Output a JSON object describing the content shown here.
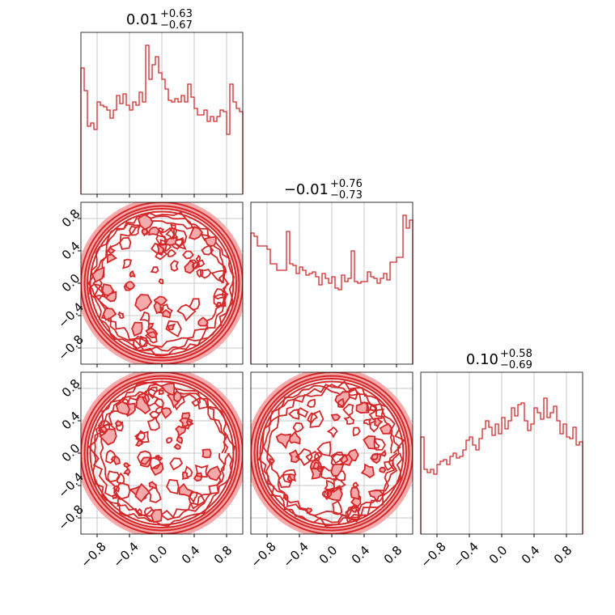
{
  "chart_data": {
    "type": "corner",
    "parameters": 3,
    "range": [
      -1,
      1
    ],
    "tick_values": [
      -0.8,
      -0.4,
      0.0,
      0.4,
      0.8
    ],
    "tick_labels": [
      "−0.8",
      "−0.4",
      "0.0",
      "0.4",
      "0.8"
    ],
    "grid": true,
    "color": "#d62728",
    "fill_color": "#f4a9ab",
    "titles": [
      {
        "median": "0.01",
        "upper": "+0.63",
        "lower": "−0.67"
      },
      {
        "median": "−0.01",
        "upper": "+0.76",
        "lower": "−0.73"
      },
      {
        "median": "0.10",
        "upper": "+0.58",
        "lower": "−0.69"
      }
    ],
    "histograms": [
      {
        "bins": 50,
        "values": [
          0.78,
          0.64,
          0.42,
          0.44,
          0.4,
          0.57,
          0.55,
          0.54,
          0.52,
          0.47,
          0.52,
          0.61,
          0.56,
          0.62,
          0.55,
          0.52,
          0.57,
          0.55,
          0.63,
          0.57,
          0.92,
          0.71,
          0.8,
          0.85,
          0.75,
          0.71,
          0.65,
          0.58,
          0.57,
          0.59,
          0.57,
          0.61,
          0.57,
          0.68,
          0.6,
          0.53,
          0.49,
          0.49,
          0.52,
          0.45,
          0.48,
          0.45,
          0.48,
          0.52,
          0.51,
          0.37,
          0.68,
          0.57,
          0.53,
          0.51
        ]
      },
      {
        "bins": 50,
        "values": [
          0.81,
          0.79,
          0.73,
          0.73,
          0.73,
          0.71,
          0.62,
          0.62,
          0.58,
          0.58,
          0.58,
          0.82,
          0.62,
          0.61,
          0.56,
          0.6,
          0.58,
          0.55,
          0.56,
          0.57,
          0.54,
          0.49,
          0.56,
          0.53,
          0.5,
          0.54,
          0.47,
          0.46,
          0.55,
          0.51,
          0.53,
          0.7,
          0.51,
          0.5,
          0.51,
          0.51,
          0.57,
          0.54,
          0.53,
          0.5,
          0.53,
          0.56,
          0.52,
          0.63,
          0.63,
          0.66,
          0.66,
          0.92,
          0.84,
          0.89
        ]
      },
      {
        "bins": 50,
        "values": [
          0.6,
          0.4,
          0.38,
          0.4,
          0.37,
          0.43,
          0.45,
          0.46,
          0.43,
          0.48,
          0.5,
          0.47,
          0.48,
          0.52,
          0.58,
          0.6,
          0.55,
          0.52,
          0.59,
          0.65,
          0.7,
          0.66,
          0.61,
          0.68,
          0.62,
          0.72,
          0.65,
          0.7,
          0.78,
          0.73,
          0.8,
          0.81,
          0.7,
          0.64,
          0.68,
          0.78,
          0.75,
          0.71,
          0.84,
          0.72,
          0.75,
          0.79,
          0.7,
          0.62,
          0.68,
          0.6,
          0.59,
          0.66,
          0.55,
          0.57
        ]
      }
    ],
    "contour_panels": [
      {
        "row": 1,
        "col": 0,
        "x_param": 0,
        "y_param": 1,
        "support": "unit disk"
      },
      {
        "row": 2,
        "col": 0,
        "x_param": 0,
        "y_param": 2,
        "support": "unit disk"
      },
      {
        "row": 2,
        "col": 1,
        "x_param": 1,
        "y_param": 2,
        "support": "unit disk"
      }
    ]
  }
}
